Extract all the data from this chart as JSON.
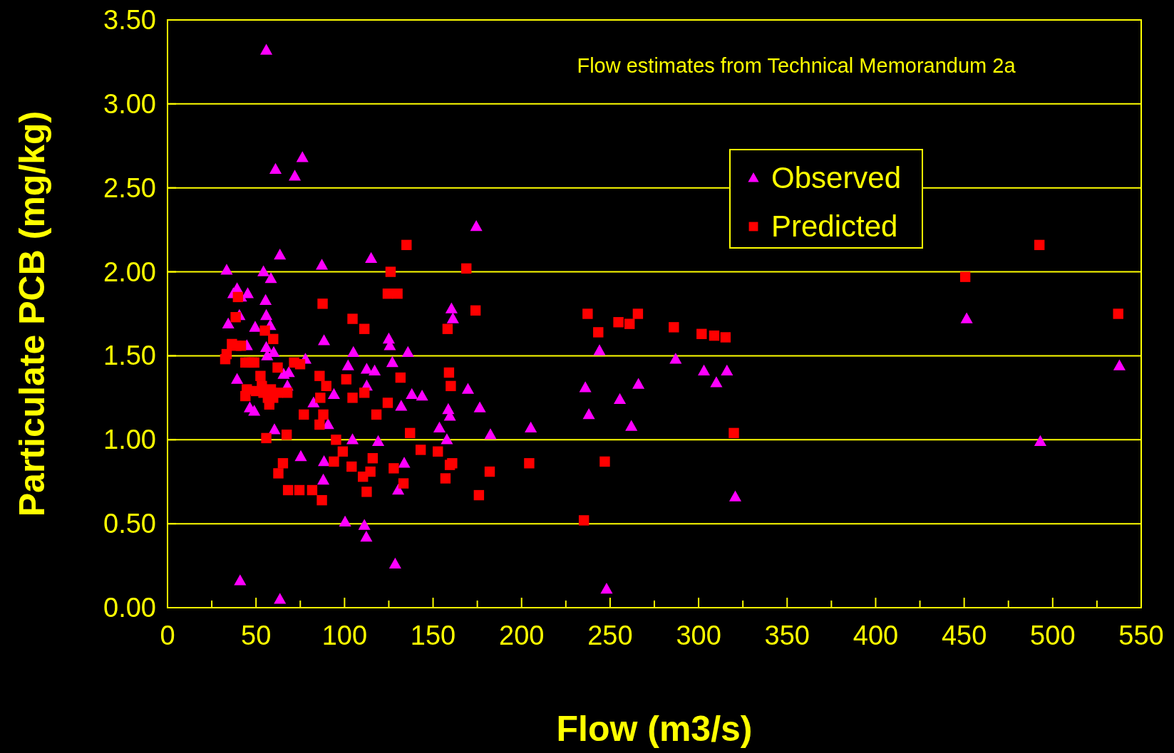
{
  "chart_data": {
    "type": "scatter",
    "xlabel": "Flow (m3/s)",
    "ylabel": "Particulate PCB (mg/kg)",
    "annotations": [
      "Flow estimates from Technical Memorandum 2a"
    ],
    "xlim": [
      0,
      550
    ],
    "xticks": [
      0,
      {
        "value": 25,
        "label": null
      },
      50,
      {
        "value": 75,
        "label": null
      },
      100,
      {
        "value": 125,
        "label": null
      },
      150,
      {
        "value": 175,
        "label": null
      },
      200,
      {
        "value": 225,
        "label": null
      },
      250,
      {
        "value": 275,
        "label": null
      },
      300,
      {
        "value": 325,
        "label": null
      },
      350,
      {
        "value": 375,
        "label": null
      },
      400,
      {
        "value": 425,
        "label": null
      },
      450,
      {
        "value": 475,
        "label": null
      },
      500,
      {
        "value": 525,
        "label": null
      },
      550
    ],
    "ylim": [
      0,
      3.5
    ],
    "yticks": [
      {
        "value": 0,
        "label": "0.00"
      },
      {
        "value": 0.5,
        "label": "0.50"
      },
      {
        "value": 1,
        "label": "1.00"
      },
      {
        "value": 1.5,
        "label": "1.50"
      },
      {
        "value": 2,
        "label": "2.00"
      },
      {
        "value": 2.5,
        "label": "2.50"
      },
      {
        "value": 3,
        "label": "3.00"
      },
      {
        "value": 3.5,
        "label": "3.50"
      }
    ],
    "grid": "y",
    "legend": "top right",
    "series": [
      {
        "name": "Observed",
        "color": "#ff00ff",
        "marker": "triangle",
        "x": [
          33.4,
          34.3,
          37.2,
          39.3,
          40.6,
          39.3,
          41.5,
          44.8,
          45.3,
          46.5,
          49,
          49.5,
          54.2,
          55.4,
          55.8,
          56.3,
          55.8,
          58.4,
          58,
          60,
          60.4,
          61,
          63.5,
          55.8,
          65.6,
          67.7,
          68.5,
          71.9,
          76.2,
          75.3,
          77.9,
          82.5,
          87.2,
          88.4,
          88,
          88.4,
          90.7,
          94,
          100.3,
          102,
          105,
          104.5,
          111.2,
          112.3,
          112.5,
          112.5,
          115,
          117,
          119,
          125,
          125.6,
          127,
          128.6,
          130.3,
          132,
          133.7,
          135.8,
          138,
          143.8,
          41,
          63.5,
          153.6,
          157.8,
          158.6,
          159.5,
          160.4,
          161.2,
          169.7,
          174.4,
          176.4,
          182.4,
          205.2,
          236,
          238,
          244,
          255.5,
          262,
          266,
          248,
          287,
          303,
          310,
          316,
          320.7,
          451.4,
          493,
          537.7
        ],
        "values": [
          2.01,
          1.69,
          1.87,
          1.9,
          1.74,
          1.36,
          1.85,
          1.56,
          1.87,
          1.19,
          1.17,
          1.67,
          2,
          1.83,
          1.74,
          1.5,
          1.55,
          1.96,
          1.68,
          1.52,
          1.06,
          2.61,
          2.1,
          3.32,
          1.39,
          1.32,
          1.4,
          2.57,
          2.68,
          0.9,
          1.48,
          1.22,
          2.04,
          1.59,
          0.76,
          0.87,
          1.09,
          1.27,
          0.51,
          1.44,
          1.52,
          1,
          0.49,
          0.42,
          1.32,
          1.42,
          2.08,
          1.41,
          0.99,
          1.6,
          1.56,
          1.46,
          0.26,
          0.7,
          1.2,
          0.86,
          1.52,
          1.27,
          1.26,
          0.16,
          0.05,
          1.07,
          1,
          1.18,
          1.14,
          1.78,
          1.72,
          1.3,
          2.27,
          1.19,
          1.03,
          1.07,
          1.31,
          1.15,
          1.53,
          1.24,
          1.08,
          1.33,
          0.11,
          1.48,
          1.41,
          1.34,
          1.41,
          0.66,
          1.72,
          0.99,
          1.44
        ]
      },
      {
        "name": "Predicted",
        "color": "#ff0000",
        "marker": "square",
        "x": [
          32.6,
          33.4,
          36.4,
          38.9,
          39.8,
          38.5,
          41.5,
          44,
          46,
          47.8,
          44,
          44.8,
          49,
          50,
          52.5,
          53.3,
          54.2,
          55,
          55.8,
          56.7,
          57.5,
          58.4,
          59.7,
          59.7,
          62.2,
          62.2,
          62.6,
          65.2,
          67.3,
          67.7,
          68.1,
          71.5,
          74.9,
          74.5,
          77,
          81.7,
          85.9,
          85.9,
          86.3,
          87.2,
          87.6,
          88,
          89.7,
          94,
          95.2,
          99,
          101,
          104,
          104.5,
          104.5,
          111.2,
          111.2,
          110.4,
          112.5,
          114.6,
          115.9,
          118,
          124.4,
          124.4,
          126,
          127.8,
          129.9,
          131.6,
          133.3,
          135,
          137,
          143,
          152.7,
          157,
          158.2,
          159,
          160,
          159.5,
          160.8,
          168.8,
          174,
          175.9,
          182,
          204.3,
          235.2,
          237.3,
          243.3,
          247,
          254.7,
          261,
          265.7,
          286,
          301.7,
          308.8,
          315.2,
          319.9,
          450.6,
          492.5,
          537
        ],
        "values": [
          1.48,
          1.51,
          1.57,
          1.56,
          1.85,
          1.73,
          1.56,
          1.46,
          1.46,
          1.46,
          1.26,
          1.3,
          1.46,
          1.29,
          1.38,
          1.32,
          1.28,
          1.65,
          1.01,
          1.25,
          1.21,
          1.3,
          1.6,
          1.25,
          1.43,
          1.28,
          0.8,
          0.86,
          1.03,
          1.28,
          0.7,
          1.46,
          1.45,
          0.7,
          1.15,
          0.7,
          1.38,
          1.09,
          1.25,
          0.64,
          1.81,
          1.15,
          1.32,
          0.87,
          1,
          0.93,
          1.36,
          0.84,
          1.72,
          1.25,
          1.66,
          1.28,
          0.78,
          0.69,
          0.81,
          0.89,
          1.15,
          1.87,
          1.22,
          2,
          0.83,
          1.87,
          1.37,
          0.74,
          2.16,
          1.04,
          0.94,
          0.93,
          0.77,
          1.66,
          1.4,
          1.32,
          0.85,
          0.86,
          2.02,
          1.77,
          0.67,
          0.81,
          0.86,
          0.52,
          1.75,
          1.64,
          0.87,
          1.7,
          1.69,
          1.75,
          1.67,
          1.63,
          1.62,
          1.61,
          1.04,
          1.97,
          2.16,
          1.75
        ]
      }
    ]
  }
}
